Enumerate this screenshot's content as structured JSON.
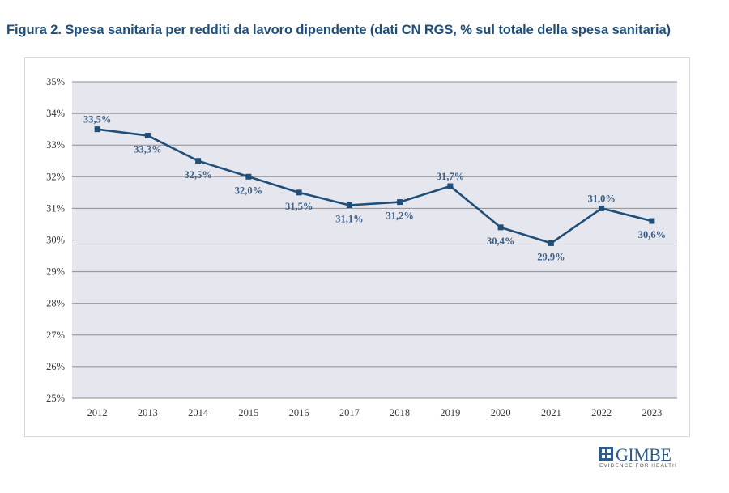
{
  "figure": {
    "title": "Figura 2. Spesa sanitaria per redditi da lavoro dipendente (dati CN RGS, % sul totale della spesa sanitaria)"
  },
  "logo": {
    "name": "GIMBE",
    "tagline": "EVIDENCE FOR HEALTH"
  },
  "colors": {
    "title": "#1f4e79",
    "series": "#1f4e79",
    "plot_background": "#e6e6ee",
    "grid": "#8c8c8c",
    "data_label": "#3b5f86"
  },
  "chart_data": {
    "type": "line",
    "title": "Figura 2. Spesa sanitaria per redditi da lavoro dipendente (dati CN RGS, % sul totale della spesa sanitaria)",
    "xlabel": "",
    "ylabel": "",
    "categories": [
      "2012",
      "2013",
      "2014",
      "2015",
      "2016",
      "2017",
      "2018",
      "2019",
      "2020",
      "2021",
      "2022",
      "2023"
    ],
    "values": [
      33.5,
      33.3,
      32.5,
      32.0,
      31.5,
      31.1,
      31.2,
      31.7,
      30.4,
      29.9,
      31.0,
      30.6
    ],
    "data_labels": [
      "33,5%",
      "33,3%",
      "32,5%",
      "32,0%",
      "31,5%",
      "31,1%",
      "31,2%",
      "31,7%",
      "30,4%",
      "29,9%",
      "31,0%",
      "30,6%"
    ],
    "label_position": [
      "above",
      "below",
      "below",
      "below",
      "below",
      "below",
      "below",
      "above",
      "below",
      "below",
      "above",
      "below"
    ],
    "ylim": [
      25,
      35
    ],
    "yticks": [
      25,
      26,
      27,
      28,
      29,
      30,
      31,
      32,
      33,
      34,
      35
    ],
    "ytick_labels": [
      "25%",
      "26%",
      "27%",
      "28%",
      "29%",
      "30%",
      "31%",
      "32%",
      "33%",
      "34%",
      "35%"
    ],
    "grid": true,
    "legend": "none"
  }
}
